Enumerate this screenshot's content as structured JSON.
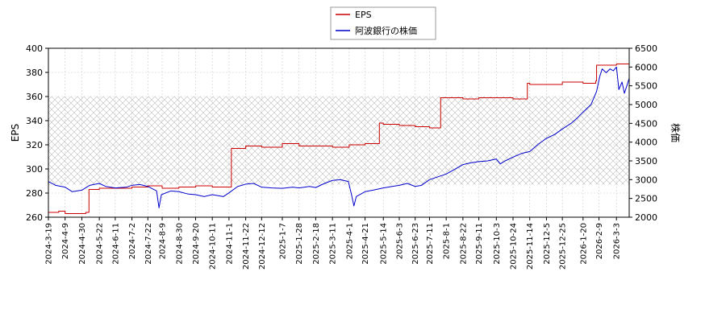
{
  "chart_data": {
    "type": "line",
    "legend": {
      "placement": "top-center"
    },
    "grid": true,
    "shaded_band": {
      "y_left": [
        287,
        360
      ],
      "pattern": "crosshatch"
    },
    "x_axis": {
      "type": "date",
      "range": [
        "2024-03-19",
        "2026-03-19"
      ],
      "ticks": [
        "2024-3-19",
        "2024-4-9",
        "2024-4-30",
        "2024-5-22",
        "2024-6-11",
        "2024-7-2",
        "2024-7-22",
        "2024-8-9",
        "2024-8-30",
        "2024-9-20",
        "2024-10-11",
        "2024-11-1",
        "2024-11-22",
        "2024-12-12",
        "2025-1-7",
        "2025-1-28",
        "2025-2-18",
        "2025-3-11",
        "2025-4-1",
        "2025-4-21",
        "2025-5-14",
        "2025-6-3",
        "2025-6-23",
        "2025-7-11",
        "2025-8-1",
        "2025-8-22",
        "2025-9-11",
        "2025-10-3",
        "2025-10-24",
        "2025-11-14",
        "2025-12-5",
        "2025-12-25",
        "2026-1-20",
        "2026-2-9",
        "2026-3-3"
      ]
    },
    "y_left": {
      "label": "EPS",
      "range": [
        260,
        400
      ],
      "ticks": [
        260,
        280,
        300,
        320,
        340,
        360,
        380,
        400
      ]
    },
    "y_right": {
      "label": "株価",
      "range": [
        2000,
        6500
      ],
      "ticks": [
        2000,
        2500,
        3000,
        3500,
        4000,
        4500,
        5000,
        5500,
        6000,
        6500
      ]
    },
    "series": [
      {
        "name": "EPS",
        "axis": "left",
        "color": "#cc0000",
        "style": "step",
        "points": [
          [
            "2024-03-19",
            264
          ],
          [
            "2024-04-01",
            265
          ],
          [
            "2024-04-09",
            263
          ],
          [
            "2024-05-05",
            264
          ],
          [
            "2024-05-09",
            283
          ],
          [
            "2024-05-22",
            284
          ],
          [
            "2024-06-11",
            284
          ],
          [
            "2024-07-02",
            285
          ],
          [
            "2024-07-22",
            286
          ],
          [
            "2024-08-09",
            284
          ],
          [
            "2024-08-30",
            285
          ],
          [
            "2024-09-20",
            286
          ],
          [
            "2024-10-11",
            285
          ],
          [
            "2024-11-03",
            285
          ],
          [
            "2024-11-04",
            317
          ],
          [
            "2024-11-22",
            319
          ],
          [
            "2024-12-12",
            318
          ],
          [
            "2025-01-07",
            321
          ],
          [
            "2025-01-28",
            319
          ],
          [
            "2025-02-18",
            319
          ],
          [
            "2025-03-11",
            318
          ],
          [
            "2025-04-01",
            320
          ],
          [
            "2025-04-21",
            321
          ],
          [
            "2025-05-08",
            321
          ],
          [
            "2025-05-09",
            338
          ],
          [
            "2025-05-14",
            337
          ],
          [
            "2025-06-03",
            336
          ],
          [
            "2025-06-23",
            335
          ],
          [
            "2025-07-11",
            334
          ],
          [
            "2025-07-24",
            334
          ],
          [
            "2025-07-25",
            359
          ],
          [
            "2025-08-01",
            359
          ],
          [
            "2025-08-22",
            358
          ],
          [
            "2025-09-11",
            359
          ],
          [
            "2025-10-03",
            359
          ],
          [
            "2025-10-24",
            358
          ],
          [
            "2025-11-10",
            358
          ],
          [
            "2025-11-11",
            371
          ],
          [
            "2025-11-14",
            370
          ],
          [
            "2025-12-05",
            370
          ],
          [
            "2025-12-25",
            372
          ],
          [
            "2026-01-20",
            371
          ],
          [
            "2026-02-05",
            373
          ],
          [
            "2026-02-06",
            386
          ],
          [
            "2026-02-20",
            386
          ],
          [
            "2026-03-03",
            387
          ],
          [
            "2026-03-19",
            386
          ]
        ]
      },
      {
        "name": "阿波銀行の株価",
        "axis": "right",
        "color": "#0000cc",
        "style": "line",
        "points": [
          [
            "2024-03-19",
            2950
          ],
          [
            "2024-03-28",
            2850
          ],
          [
            "2024-04-09",
            2800
          ],
          [
            "2024-04-18",
            2680
          ],
          [
            "2024-04-30",
            2720
          ],
          [
            "2024-05-10",
            2850
          ],
          [
            "2024-05-22",
            2900
          ],
          [
            "2024-05-30",
            2820
          ],
          [
            "2024-06-11",
            2780
          ],
          [
            "2024-06-25",
            2800
          ],
          [
            "2024-07-02",
            2850
          ],
          [
            "2024-07-12",
            2870
          ],
          [
            "2024-07-22",
            2820
          ],
          [
            "2024-08-02",
            2700
          ],
          [
            "2024-08-05",
            2250
          ],
          [
            "2024-08-08",
            2600
          ],
          [
            "2024-08-20",
            2700
          ],
          [
            "2024-08-30",
            2680
          ],
          [
            "2024-09-10",
            2620
          ],
          [
            "2024-09-20",
            2600
          ],
          [
            "2024-10-01",
            2550
          ],
          [
            "2024-10-11",
            2600
          ],
          [
            "2024-10-25",
            2550
          ],
          [
            "2024-11-01",
            2650
          ],
          [
            "2024-11-12",
            2820
          ],
          [
            "2024-11-22",
            2880
          ],
          [
            "2024-12-02",
            2900
          ],
          [
            "2024-12-12",
            2800
          ],
          [
            "2024-12-25",
            2780
          ],
          [
            "2025-01-07",
            2770
          ],
          [
            "2025-01-20",
            2800
          ],
          [
            "2025-01-28",
            2780
          ],
          [
            "2025-02-10",
            2820
          ],
          [
            "2025-02-18",
            2790
          ],
          [
            "2025-03-01",
            2900
          ],
          [
            "2025-03-11",
            2980
          ],
          [
            "2025-03-21",
            3000
          ],
          [
            "2025-03-31",
            2950
          ],
          [
            "2025-04-04",
            2600
          ],
          [
            "2025-04-07",
            2300
          ],
          [
            "2025-04-10",
            2550
          ],
          [
            "2025-04-21",
            2680
          ],
          [
            "2025-05-01",
            2720
          ],
          [
            "2025-05-14",
            2780
          ],
          [
            "2025-05-25",
            2820
          ],
          [
            "2025-06-03",
            2850
          ],
          [
            "2025-06-13",
            2900
          ],
          [
            "2025-06-23",
            2820
          ],
          [
            "2025-07-01",
            2850
          ],
          [
            "2025-07-11",
            3000
          ],
          [
            "2025-07-25",
            3100
          ],
          [
            "2025-08-01",
            3150
          ],
          [
            "2025-08-12",
            3280
          ],
          [
            "2025-08-22",
            3400
          ],
          [
            "2025-09-01",
            3450
          ],
          [
            "2025-09-11",
            3480
          ],
          [
            "2025-09-22",
            3500
          ],
          [
            "2025-10-03",
            3550
          ],
          [
            "2025-10-08",
            3420
          ],
          [
            "2025-10-14",
            3500
          ],
          [
            "2025-10-24",
            3600
          ],
          [
            "2025-11-04",
            3700
          ],
          [
            "2025-11-14",
            3750
          ],
          [
            "2025-11-25",
            3950
          ],
          [
            "2025-12-05",
            4100
          ],
          [
            "2025-12-15",
            4200
          ],
          [
            "2025-12-25",
            4350
          ],
          [
            "2026-01-05",
            4500
          ],
          [
            "2026-01-13",
            4650
          ],
          [
            "2026-01-20",
            4800
          ],
          [
            "2026-01-30",
            5000
          ],
          [
            "2026-02-06",
            5350
          ],
          [
            "2026-02-10",
            5750
          ],
          [
            "2026-02-13",
            5950
          ],
          [
            "2026-02-18",
            5850
          ],
          [
            "2026-02-23",
            5950
          ],
          [
            "2026-02-27",
            5900
          ],
          [
            "2026-03-03",
            6000
          ],
          [
            "2026-03-06",
            5400
          ],
          [
            "2026-03-10",
            5600
          ],
          [
            "2026-03-13",
            5300
          ],
          [
            "2026-03-19",
            5700
          ]
        ]
      }
    ]
  }
}
